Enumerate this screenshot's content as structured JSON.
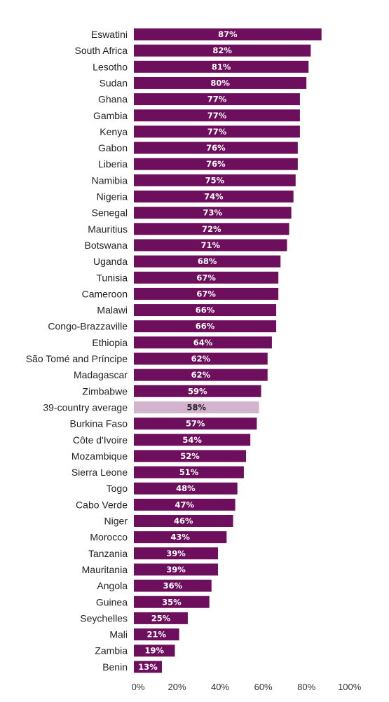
{
  "chart_data": {
    "type": "bar",
    "orientation": "horizontal",
    "categories": [
      "Eswatini",
      "South Africa",
      "Lesotho",
      "Sudan",
      "Ghana",
      "Gambia",
      "Kenya",
      "Gabon",
      "Liberia",
      "Namibia",
      "Nigeria",
      "Senegal",
      "Mauritius",
      "Botswana",
      "Uganda",
      "Tunisia",
      "Cameroon",
      "Malawi",
      "Congo-Brazzaville",
      "Ethiopia",
      "São Tomé and Príncipe",
      "Madagascar",
      "Zimbabwe",
      "39-country average",
      "Burkina Faso",
      "Côte d'Ivoire",
      "Mozambique",
      "Sierra Leone",
      "Togo",
      "Cabo Verde",
      "Niger",
      "Morocco",
      "Tanzania",
      "Mauritania",
      "Angola",
      "Guinea",
      "Seychelles",
      "Mali",
      "Zambia",
      "Benin"
    ],
    "values": [
      87,
      82,
      81,
      80,
      77,
      77,
      77,
      76,
      76,
      75,
      74,
      73,
      72,
      71,
      68,
      67,
      67,
      66,
      66,
      64,
      62,
      62,
      59,
      58,
      57,
      54,
      52,
      51,
      48,
      47,
      46,
      43,
      39,
      39,
      36,
      35,
      25,
      21,
      19,
      13
    ],
    "value_labels": [
      "87%",
      "82%",
      "81%",
      "80%",
      "77%",
      "77%",
      "77%",
      "76%",
      "76%",
      "75%",
      "74%",
      "73%",
      "72%",
      "71%",
      "68%",
      "67%",
      "67%",
      "66%",
      "66%",
      "64%",
      "62%",
      "62%",
      "59%",
      "58%",
      "57%",
      "54%",
      "52%",
      "51%",
      "48%",
      "47%",
      "46%",
      "43%",
      "39%",
      "39%",
      "36%",
      "35%",
      "25%",
      "21%",
      "19%",
      "13%"
    ],
    "highlight_category": "39-country average",
    "xticks": [
      "0%",
      "20%",
      "40%",
      "60%",
      "80%",
      "100%"
    ],
    "xlim": [
      0,
      100
    ],
    "grid": false,
    "colors": {
      "bar": "#6e0f5e",
      "highlight_bar": "#d4b3cf",
      "value_text": "#ffffff",
      "highlight_value_text": "#222222"
    }
  }
}
